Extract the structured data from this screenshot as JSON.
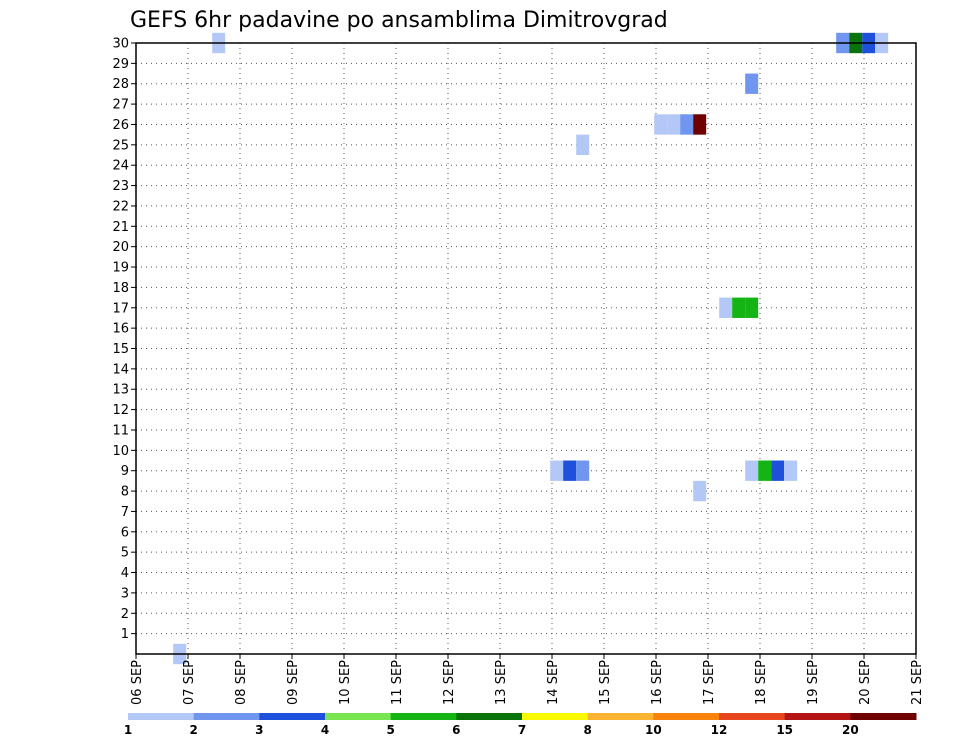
{
  "chart_data": {
    "type": "heatmap",
    "title": "GEFS 6hr padavine po ansamblima Dimitrovgrad",
    "x_tick_labels": [
      "06 SEP",
      "07 SEP",
      "08 SEP",
      "09 SEP",
      "10 SEP",
      "11 SEP",
      "12 SEP",
      "13 SEP",
      "14 SEP",
      "15 SEP",
      "16 SEP",
      "17 SEP",
      "18 SEP",
      "19 SEP",
      "20 SEP",
      "21 SEP"
    ],
    "x_range_days": [
      0,
      15
    ],
    "y_range": [
      0,
      30
    ],
    "y_tick_labels": [
      "1",
      "2",
      "3",
      "4",
      "5",
      "6",
      "7",
      "8",
      "9",
      "10",
      "11",
      "12",
      "13",
      "14",
      "15",
      "16",
      "17",
      "18",
      "19",
      "20",
      "21",
      "22",
      "23",
      "24",
      "25",
      "26",
      "27",
      "28",
      "29",
      "30"
    ],
    "grid": true,
    "colorbar": {
      "colors": [
        "#b4c8f8",
        "#7096f0",
        "#1e50dc",
        "#78e650",
        "#14b414",
        "#0a730a",
        "#fafa00",
        "#fab432",
        "#fa820a",
        "#e6461e",
        "#b41414",
        "#6e0000"
      ],
      "labels": [
        "1",
        "2",
        "3",
        "4",
        "5",
        "6",
        "7",
        "8",
        "10",
        "12",
        "15",
        "20"
      ]
    },
    "cells": [
      {
        "x": 0.84,
        "y": 0,
        "bin": 1
      },
      {
        "x": 1.59,
        "y": 30,
        "bin": 1
      },
      {
        "x": 8.09,
        "y": 9,
        "bin": 1
      },
      {
        "x": 8.34,
        "y": 9,
        "bin": 3
      },
      {
        "x": 8.59,
        "y": 9,
        "bin": 2
      },
      {
        "x": 8.59,
        "y": 25,
        "bin": 1
      },
      {
        "x": 10.09,
        "y": 26,
        "bin": 1
      },
      {
        "x": 10.34,
        "y": 26,
        "bin": 1
      },
      {
        "x": 10.59,
        "y": 26,
        "bin": 2
      },
      {
        "x": 10.84,
        "y": 26,
        "bin": 12
      },
      {
        "x": 10.84,
        "y": 8,
        "bin": 1
      },
      {
        "x": 11.34,
        "y": 17,
        "bin": 1
      },
      {
        "x": 11.59,
        "y": 17,
        "bin": 5
      },
      {
        "x": 11.84,
        "y": 17,
        "bin": 5
      },
      {
        "x": 11.84,
        "y": 9,
        "bin": 1
      },
      {
        "x": 12.09,
        "y": 9,
        "bin": 5
      },
      {
        "x": 12.34,
        "y": 9,
        "bin": 3
      },
      {
        "x": 12.59,
        "y": 9,
        "bin": 1
      },
      {
        "x": 11.84,
        "y": 28,
        "bin": 2
      },
      {
        "x": 13.59,
        "y": 30,
        "bin": 2
      },
      {
        "x": 13.84,
        "y": 30,
        "bin": 6
      },
      {
        "x": 14.09,
        "y": 30,
        "bin": 3
      },
      {
        "x": 14.34,
        "y": 30,
        "bin": 1
      }
    ]
  }
}
